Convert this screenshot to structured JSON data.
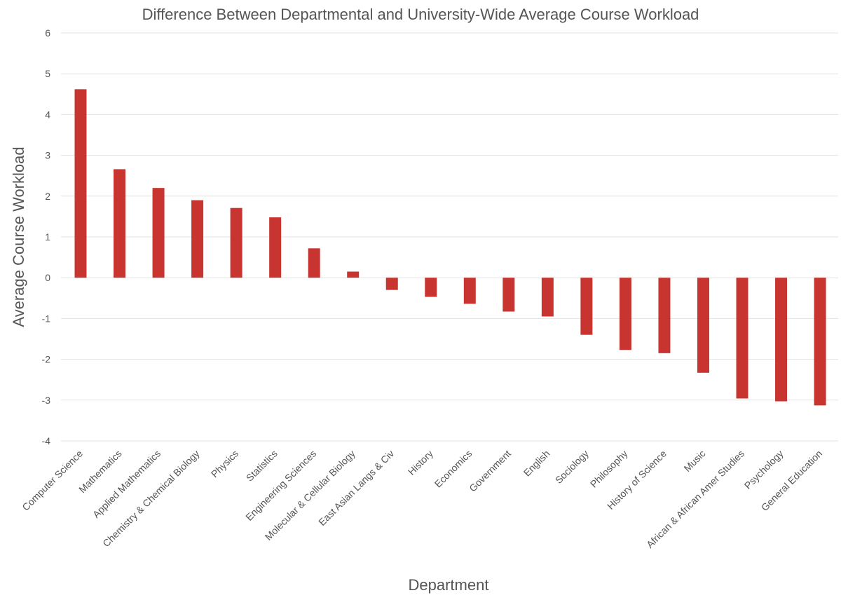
{
  "chart_data": {
    "type": "bar",
    "title": "Difference Between Departmental and University-Wide Average Course Workload",
    "xlabel": "Department",
    "ylabel": "Average Course Workload",
    "ylim": [
      -4,
      6
    ],
    "yticks": [
      6,
      5,
      4,
      3,
      2,
      1,
      0,
      -1,
      -2,
      -3,
      -4
    ],
    "grid": true,
    "bar_color": "#c83530",
    "categories": [
      "Computer Science",
      "Mathematics",
      "Applied Mathematics",
      "Chemistry & Chemical Biology",
      "Physics",
      "Statistics",
      "Engineering Sciences",
      "Molecular & Cellular Biology",
      "East Asian Langs & Civ",
      "History",
      "Economics",
      "Government",
      "English",
      "Sociology",
      "Philosophy",
      "History of Science",
      "Music",
      "African & African Amer Studies",
      "Psychology",
      "General Education"
    ],
    "values": [
      4.62,
      2.66,
      2.2,
      1.9,
      1.71,
      1.48,
      0.72,
      0.15,
      -0.3,
      -0.47,
      -0.64,
      -0.83,
      -0.95,
      -1.4,
      -1.77,
      -1.85,
      -2.33,
      -2.96,
      -3.03,
      -3.13
    ]
  }
}
